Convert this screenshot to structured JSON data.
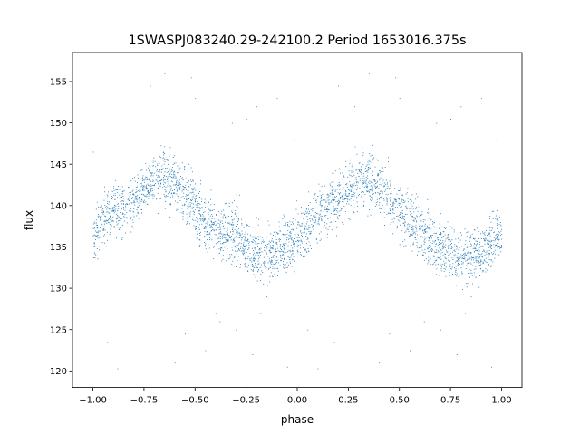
{
  "chart_data": {
    "type": "scatter",
    "title": "1SWASPJ083240.29-242100.2 Period 1653016.375s",
    "xlabel": "phase",
    "ylabel": "flux",
    "xlim": [
      -1.1,
      1.1
    ],
    "ylim": [
      118,
      158.5
    ],
    "xticks": [
      -1.0,
      -0.75,
      -0.5,
      -0.25,
      0.0,
      0.25,
      0.5,
      0.75,
      1.0
    ],
    "xtick_labels": [
      "−1.00",
      "−0.75",
      "−0.50",
      "−0.25",
      "0.00",
      "0.25",
      "0.50",
      "0.75",
      "1.00"
    ],
    "yticks": [
      120,
      125,
      130,
      135,
      140,
      145,
      150,
      155
    ],
    "ytick_labels": [
      "120",
      "125",
      "130",
      "135",
      "140",
      "145",
      "150",
      "155"
    ],
    "grid": false,
    "marker_color": "#1f77b4",
    "series": [
      {
        "x": [
          -1.0,
          -0.95,
          -0.9,
          -0.85,
          -0.8,
          -0.75,
          -0.7,
          -0.65,
          -0.6,
          -0.55,
          -0.5,
          -0.45,
          -0.4,
          -0.35,
          -0.3,
          -0.25,
          -0.2,
          -0.15,
          -0.1,
          -0.05,
          0.0,
          0.05,
          0.1,
          0.15,
          0.2,
          0.25,
          0.3,
          0.35,
          0.4,
          0.45,
          0.5,
          0.55,
          0.6,
          0.65,
          0.7,
          0.75,
          0.8,
          0.85,
          0.9,
          0.95,
          1.0
        ],
        "y": [
          136.5,
          138,
          140,
          139.5,
          140.5,
          142,
          143,
          143.5,
          142.5,
          141.5,
          140,
          138,
          137,
          136.5,
          137,
          135,
          134.5,
          134,
          134.5,
          135,
          136,
          137.5,
          139,
          140,
          141,
          142,
          143,
          143,
          142,
          141,
          139.5,
          138.5,
          137,
          136,
          135,
          134.5,
          134,
          134,
          134.5,
          135.5,
          136.5
        ],
        "spread": [
          2.5,
          3,
          3,
          3,
          2.5,
          2.5,
          2.5,
          3,
          3,
          3,
          3,
          3,
          2.5,
          3,
          3,
          3,
          3,
          3,
          3,
          3,
          3,
          3,
          3,
          3,
          3,
          3,
          3,
          3,
          3,
          3,
          3,
          3,
          3,
          3,
          3,
          3,
          3,
          3,
          3,
          3,
          2.5
        ]
      }
    ],
    "outliers": [
      [
        -0.93,
        123.5
      ],
      [
        -0.88,
        120.3
      ],
      [
        -0.82,
        123.5
      ],
      [
        -0.72,
        154.5
      ],
      [
        -0.65,
        156
      ],
      [
        -0.6,
        121
      ],
      [
        -0.55,
        124.5
      ],
      [
        -0.52,
        155.5
      ],
      [
        -0.5,
        153
      ],
      [
        -0.45,
        122.5
      ],
      [
        -0.4,
        127
      ],
      [
        -0.38,
        126
      ],
      [
        -0.32,
        155
      ],
      [
        -0.32,
        150
      ],
      [
        -0.3,
        125
      ],
      [
        -0.25,
        150.5
      ],
      [
        -0.22,
        122
      ],
      [
        -0.2,
        152
      ],
      [
        -0.18,
        127
      ],
      [
        -0.15,
        129
      ],
      [
        -0.1,
        153
      ],
      [
        -0.05,
        120.5
      ],
      [
        -0.02,
        148
      ],
      [
        0.05,
        125
      ],
      [
        0.08,
        154
      ],
      [
        0.1,
        120.3
      ],
      [
        0.18,
        123.5
      ],
      [
        0.2,
        154.5
      ],
      [
        0.28,
        152
      ],
      [
        0.35,
        156
      ],
      [
        0.4,
        121
      ],
      [
        0.45,
        124.5
      ],
      [
        0.48,
        155.5
      ],
      [
        0.5,
        153
      ],
      [
        0.55,
        122.5
      ],
      [
        0.6,
        127
      ],
      [
        0.62,
        126
      ],
      [
        0.68,
        155
      ],
      [
        0.68,
        150
      ],
      [
        0.7,
        125
      ],
      [
        0.75,
        150.5
      ],
      [
        0.78,
        122
      ],
      [
        0.8,
        152
      ],
      [
        0.82,
        127
      ],
      [
        0.85,
        129
      ],
      [
        0.9,
        153
      ],
      [
        0.95,
        120.5
      ],
      [
        0.97,
        148
      ],
      [
        -1.0,
        146.5
      ],
      [
        0.98,
        127
      ]
    ]
  }
}
